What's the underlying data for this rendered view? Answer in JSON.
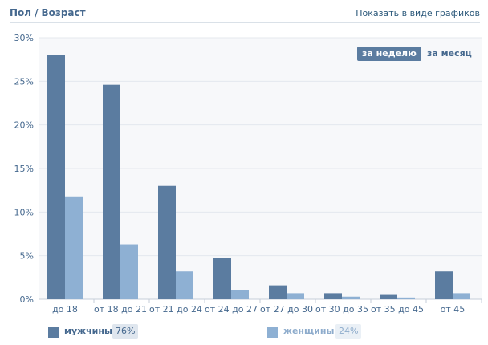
{
  "header": {
    "title_part1": "Пол",
    "separator": "/",
    "title_part2": "Возраст",
    "show_graphs_link": "Показать в виде графиков"
  },
  "period_toggle": {
    "week_label": "за неделю",
    "month_label": "за месяц",
    "selected": "week"
  },
  "legend": {
    "men_label": "мужчины",
    "men_percent": "76%",
    "women_label": "женщины",
    "women_percent": "24%"
  },
  "colors": {
    "men": "#5b7ca0",
    "women": "#8eb0d3",
    "grid": "#e4e9ee",
    "axis_text": "#45688e",
    "background": "#f7f8fa"
  },
  "chart_data": {
    "type": "bar",
    "categories": [
      "до 18",
      "от 18 до 21",
      "от 21 до 24",
      "от 24 до 27",
      "от 27 до 30",
      "от 30 до 35",
      "от 35 до 45",
      "от 45"
    ],
    "series": [
      {
        "name": "мужчины",
        "values": [
          28.0,
          24.6,
          13.0,
          4.7,
          1.6,
          0.7,
          0.5,
          3.2
        ]
      },
      {
        "name": "женщины",
        "values": [
          11.8,
          6.3,
          3.2,
          1.1,
          0.7,
          0.3,
          0.2,
          0.7
        ]
      }
    ],
    "y_ticks": [
      "0%",
      "5%",
      "10%",
      "15%",
      "20%",
      "25%",
      "30%"
    ],
    "ylim": [
      0,
      30
    ],
    "grid": true,
    "legend_position": "bottom"
  }
}
